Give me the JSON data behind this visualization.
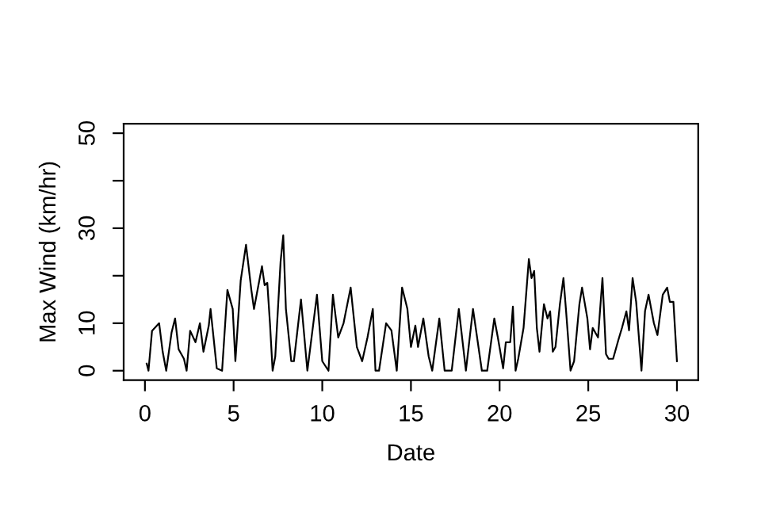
{
  "chart_data": {
    "type": "line",
    "xlabel": "Date",
    "ylabel": "Max Wind (km/hr)",
    "xlim": [
      -1.2,
      31.2
    ],
    "ylim": [
      -2,
      52
    ],
    "xticks": [
      0,
      5,
      10,
      15,
      20,
      25,
      30
    ],
    "yticks": [
      0,
      10,
      {
        "value": 20,
        "label": null
      },
      30,
      {
        "value": 40,
        "label": null
      },
      50
    ],
    "grid": false,
    "marker": "none",
    "line_style": "solid",
    "series": [
      {
        "color": "#000000",
        "x": [
          0.1,
          0.2,
          0.4,
          0.8,
          1.0,
          1.2,
          1.5,
          1.7,
          1.9,
          2.2,
          2.35,
          2.55,
          2.85,
          3.1,
          3.3,
          3.6,
          3.7,
          4.05,
          4.35,
          4.65,
          4.8,
          4.95,
          5.1,
          5.4,
          5.7,
          6.0,
          6.15,
          6.6,
          6.75,
          6.9,
          7.05,
          7.2,
          7.35,
          7.65,
          7.8,
          7.95,
          8.25,
          8.4,
          8.8,
          9.16,
          9.7,
          10.0,
          10.35,
          10.6,
          10.9,
          11.2,
          11.6,
          11.95,
          12.25,
          12.55,
          12.85,
          13.0,
          13.2,
          13.6,
          13.9,
          14.2,
          14.5,
          14.8,
          15.0,
          15.25,
          15.4,
          15.7,
          16.0,
          16.2,
          16.6,
          16.9,
          17.3,
          17.7,
          18.1,
          18.5,
          19.0,
          19.3,
          19.7,
          19.9,
          20.2,
          20.35,
          20.6,
          20.75,
          20.9,
          21.05,
          21.35,
          21.65,
          21.8,
          21.95,
          22.1,
          22.25,
          22.5,
          22.7,
          22.85,
          23.0,
          23.15,
          23.4,
          23.6,
          23.75,
          24.0,
          24.2,
          24.5,
          24.65,
          24.95,
          25.1,
          25.25,
          25.55,
          25.8,
          26.0,
          26.15,
          26.4,
          26.7,
          26.9,
          27.15,
          27.3,
          27.5,
          27.7,
          28.0,
          28.2,
          28.4,
          28.7,
          28.9,
          29.2,
          29.45,
          29.6,
          29.8,
          30.0
        ],
        "values": [
          1.5,
          0,
          8.4,
          10,
          4,
          0,
          8,
          11,
          4.5,
          2.5,
          0,
          8.4,
          6,
          10,
          4,
          9.5,
          13,
          0.5,
          0,
          17,
          15,
          13,
          2,
          19,
          26.5,
          17,
          13,
          22,
          18,
          18.5,
          10,
          0,
          3,
          23,
          28.5,
          13,
          2,
          2,
          15,
          0,
          16,
          2,
          0,
          16,
          7,
          10,
          17.5,
          5,
          2,
          7,
          13,
          0,
          0,
          10,
          8.5,
          0,
          17.5,
          13,
          5,
          9.5,
          5,
          11,
          3,
          0,
          11,
          0,
          0,
          13,
          0,
          13,
          0,
          0,
          11,
          7,
          0.5,
          6,
          6,
          13.5,
          0,
          2.5,
          9,
          23.5,
          19.5,
          21,
          9,
          4,
          14,
          11,
          12.5,
          4,
          5,
          14,
          19.5,
          12.5,
          0,
          2,
          14,
          17.5,
          11,
          4.5,
          9,
          7,
          19.5,
          3.5,
          2.5,
          2.5,
          6.5,
          9,
          12.5,
          8.5,
          19.5,
          14.5,
          0,
          12.5,
          16,
          10,
          7.5,
          16,
          17.5,
          14.5,
          14.5,
          2
        ]
      }
    ]
  }
}
